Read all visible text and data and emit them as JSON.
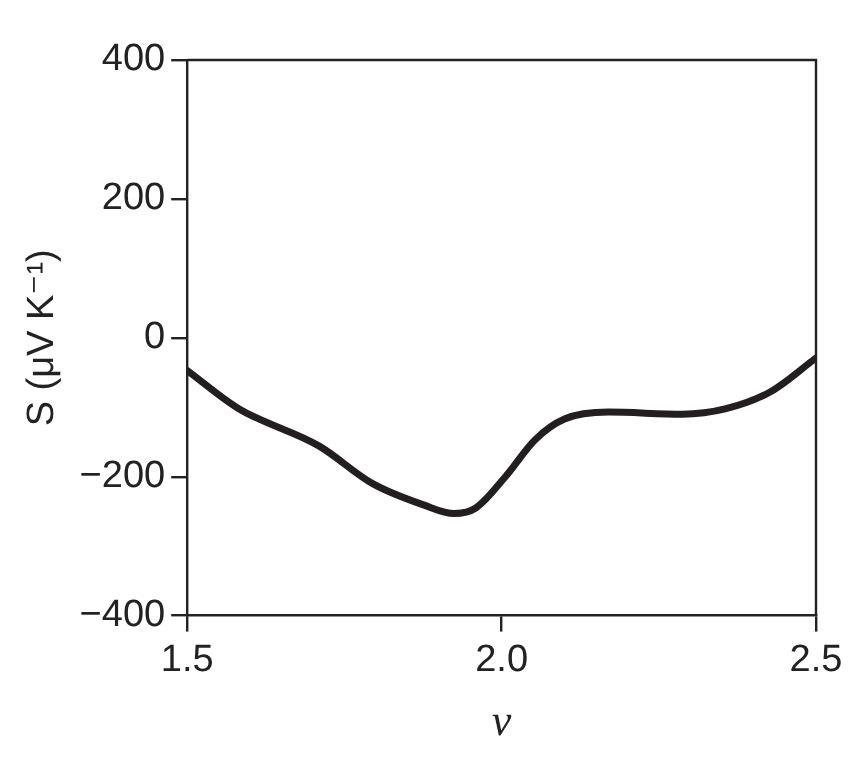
{
  "chart_data": {
    "type": "line",
    "xlabel": "ν",
    "ylabel": "S (μV K⁻¹)",
    "xlim": [
      1.5,
      2.5
    ],
    "xticks": [
      1.5,
      {
        "value": 2,
        "label": "2.0"
      },
      2.5
    ],
    "ylim": [
      -400,
      400
    ],
    "yticks": [
      {
        "value": -400,
        "label": "−400"
      },
      {
        "value": -200,
        "label": "−200"
      },
      0,
      200,
      400
    ],
    "grid": false,
    "legend": false,
    "marker": "none",
    "line_style": "solid",
    "series": [
      {
        "color": "#231f20",
        "x": [
          1.5,
          1.582,
          1.71,
          1.795,
          1.877,
          1.924,
          1.959,
          2.006,
          2.053,
          2.1,
          2.17,
          2.287,
          2.357,
          2.427,
          2.5
        ],
        "values": [
          -47,
          -102,
          -156,
          -210,
          -241,
          -253,
          -245,
          -200,
          -147,
          -117,
          -107,
          -110,
          -102,
          -78,
          -29
        ]
      }
    ]
  }
}
